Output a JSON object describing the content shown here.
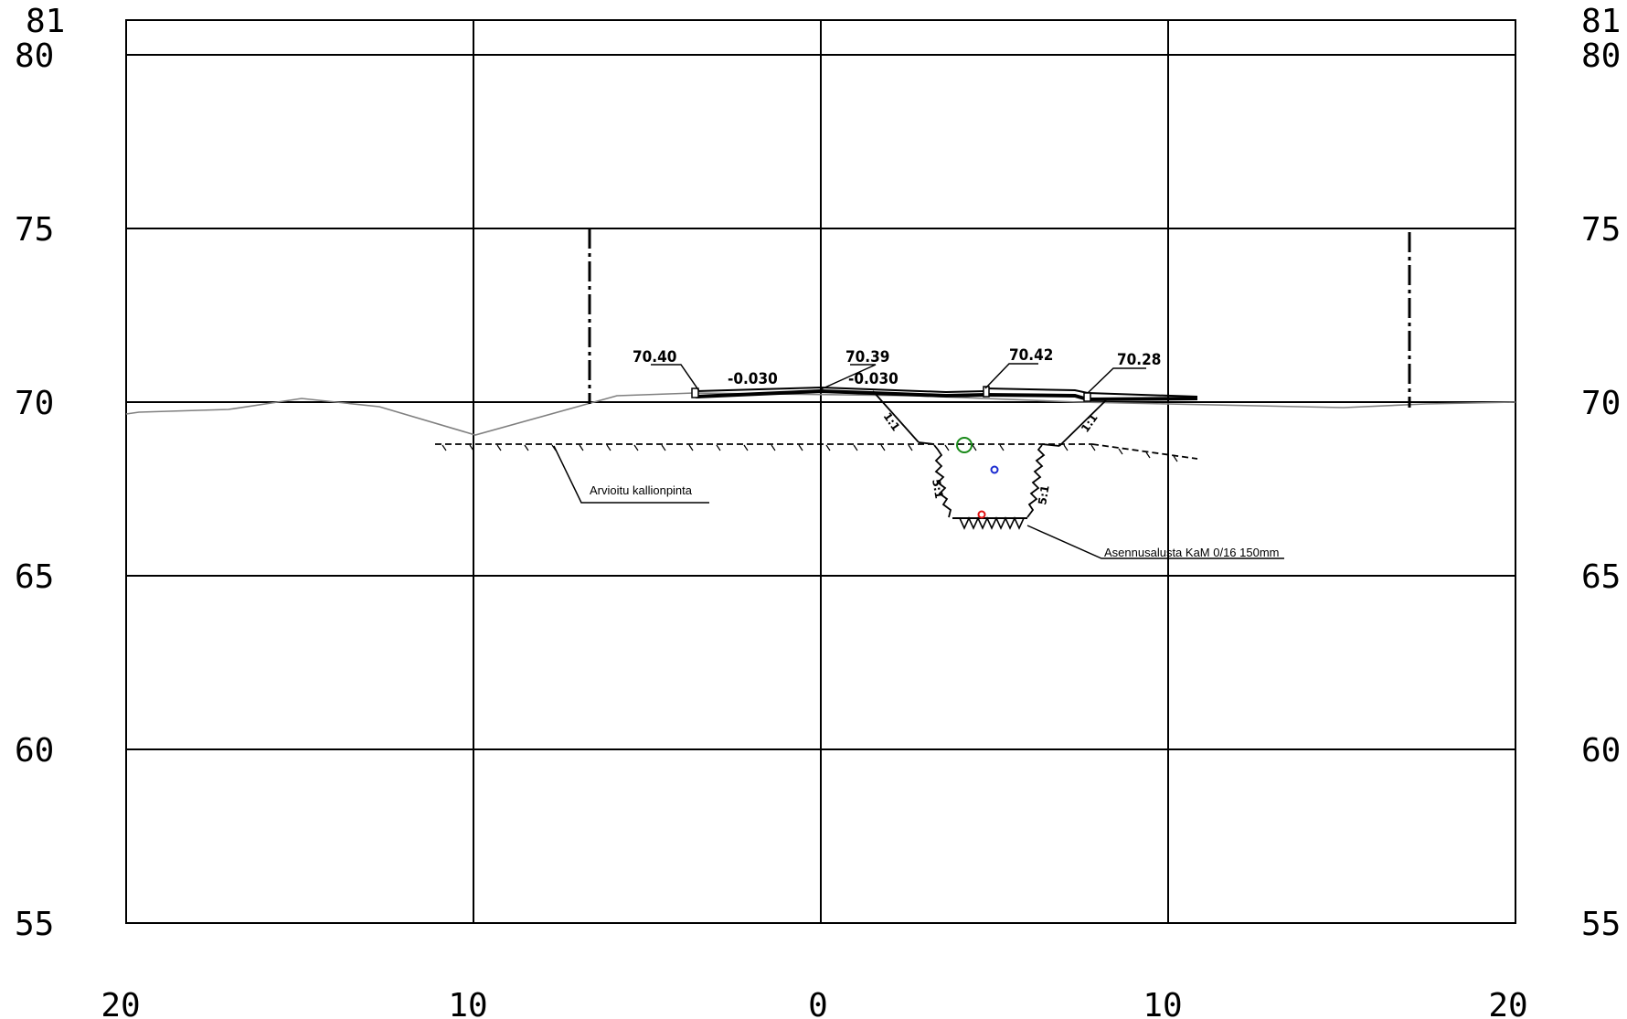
{
  "axes": {
    "y_left": [
      "81",
      "80",
      "75",
      "70",
      "65",
      "60",
      "55"
    ],
    "y_right": [
      "81",
      "80",
      "75",
      "70",
      "65",
      "60",
      "55"
    ],
    "x_bottom": [
      "20",
      "10",
      "0",
      "10",
      "20"
    ]
  },
  "elevations": {
    "left_edge": "70.40",
    "centerline": "70.39",
    "right_curb": "70.42",
    "right_edge": "70.28"
  },
  "crossfall": {
    "left": "-0.030",
    "right": "-0.030"
  },
  "slopes": {
    "fill_left": "1:1",
    "fill_right": "1:1",
    "trench_left": "5:1",
    "trench_right": "5:1"
  },
  "annotations": {
    "rock_surface": "Arvioitu kallionpinta",
    "bedding": "Asennusalusta KaM 0/16 150mm"
  },
  "colors": {
    "line": "#000000",
    "ground_line": "#808080",
    "pipe_green": "#1a8a1a",
    "pipe_blue": "#1a2ad0",
    "pipe_red": "#e01010"
  }
}
